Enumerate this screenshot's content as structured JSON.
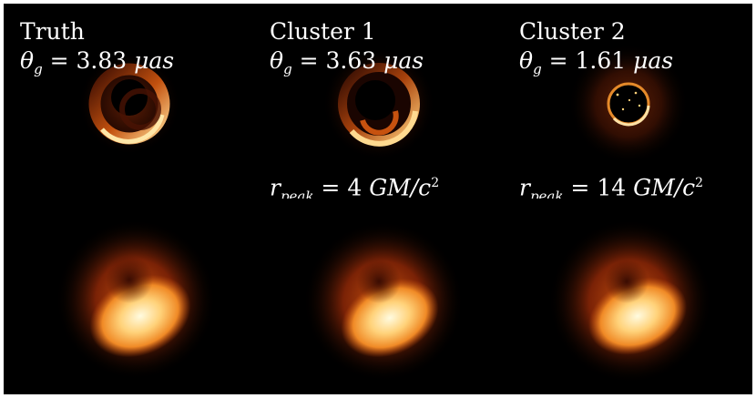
{
  "panels": [
    {
      "title": "Truth",
      "theta_symbol": "θ",
      "theta_sub": "g",
      "theta_value": "= 3.83",
      "theta_unit": "μas"
    },
    {
      "title": "Cluster 1",
      "theta_symbol": "θ",
      "theta_sub": "g",
      "theta_value": "= 3.63",
      "theta_unit": "μas",
      "r_symbol": "r",
      "r_sub": "peak",
      "r_value": "= 4",
      "r_unit": "GM/c",
      "r_exp": "2"
    },
    {
      "title": "Cluster 2",
      "theta_symbol": "θ",
      "theta_sub": "g",
      "theta_value": "= 1.61",
      "theta_unit": "μas",
      "r_symbol": "r",
      "r_sub": "peak",
      "r_value": "= 14",
      "r_unit": "GM/c",
      "r_exp": "2"
    }
  ],
  "colors": {
    "background": "#000000",
    "label": "#ffffff",
    "glow": "#ffd27a",
    "ring": "#e07a18"
  }
}
